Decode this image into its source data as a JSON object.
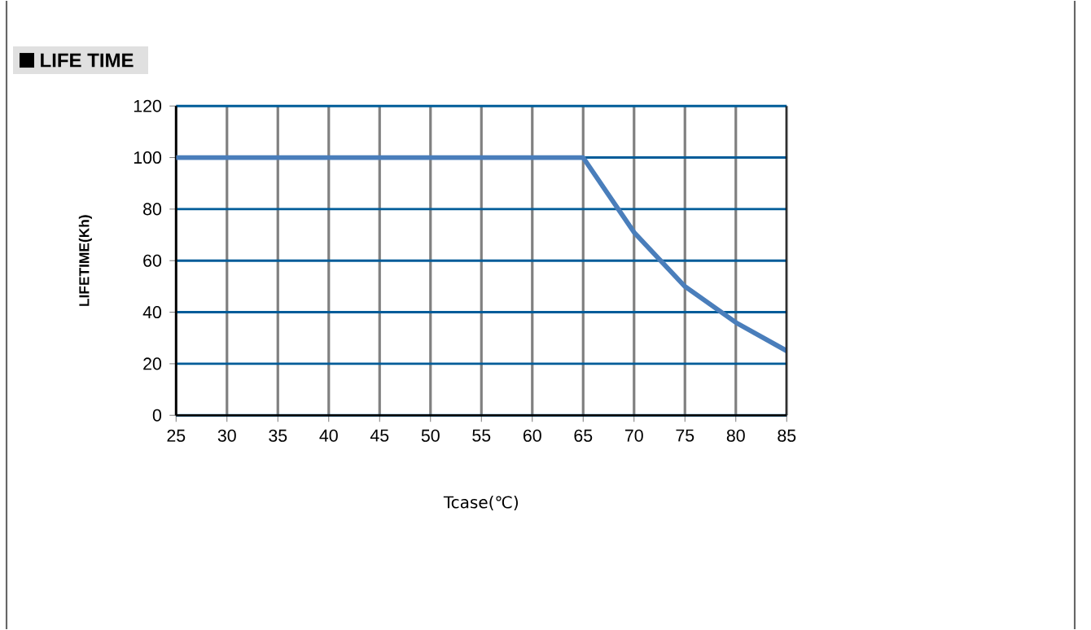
{
  "chart_data": {
    "type": "line",
    "title": "LIFE TIME",
    "xlabel": "Tcase(℃)",
    "ylabel": "LIFETIME(Kh)",
    "x": [
      25,
      65,
      70,
      75,
      80,
      85
    ],
    "series": [
      {
        "color": "#4a7ebb",
        "values": [
          100,
          100,
          71,
          50,
          36,
          25
        ]
      }
    ],
    "xlim": [
      25,
      85
    ],
    "ylim": [
      0,
      120
    ],
    "xticks": [
      25,
      30,
      35,
      40,
      45,
      50,
      55,
      60,
      65,
      70,
      75,
      80,
      85
    ],
    "yticks": [
      0,
      20,
      40,
      60,
      80,
      100,
      120
    ],
    "grid": true
  }
}
